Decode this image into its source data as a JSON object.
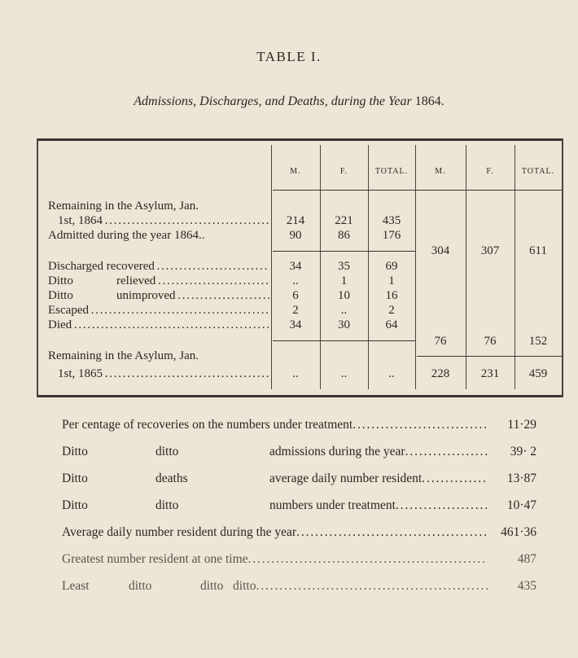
{
  "title": "TABLE I.",
  "subtitle": {
    "text": "Admissions, Discharges, and Deaths, during the Year",
    "year": "1864."
  },
  "table": {
    "headers": [
      "M.",
      "F.",
      "TOTAL.",
      "M.",
      "F.",
      "TOTAL."
    ],
    "rows": [
      {
        "label1": "Remaining in the Asylum, Jan.",
        "label2": "1st, 1864",
        "m": "214",
        "f": "221",
        "total": "435"
      },
      {
        "label1": "Admitted during the year 1864..",
        "m": "90",
        "f": "86",
        "total": "176"
      },
      {
        "label1": "Discharged recovered",
        "m": "34",
        "f": "35",
        "total": "69"
      },
      {
        "label1": "Ditto",
        "label2": "relieved",
        "m": "..",
        "f": "1",
        "total": "1"
      },
      {
        "label1": "Ditto",
        "label2": "unimproved",
        "m": "6",
        "f": "10",
        "total": "16"
      },
      {
        "label1": "Escaped",
        "m": "2",
        "f": "..",
        "total": "2"
      },
      {
        "label1": "Died",
        "m": "34",
        "f": "30",
        "total": "64"
      },
      {
        "label1": "Remaining in the Asylum, Jan.",
        "label2": "1st, 1865",
        "m": "..",
        "f": "..",
        "total": ".."
      }
    ],
    "group_totals": [
      {
        "m": "304",
        "f": "307",
        "total": "611"
      },
      {
        "m": "76",
        "f": "76",
        "total": "152"
      },
      {
        "m": "228",
        "f": "231",
        "total": "459"
      }
    ]
  },
  "summary": [
    {
      "a": "Per centage of recoveries on the numbers under treatment",
      "b": "",
      "c": "",
      "value": "11·29"
    },
    {
      "a": "Ditto",
      "b": "ditto",
      "c": "admissions during the year",
      "value": "39· 2"
    },
    {
      "a": "Ditto",
      "b": "deaths",
      "c": "average daily number resident",
      "value": "13·87"
    },
    {
      "a": "Ditto",
      "b": "ditto",
      "c": "numbers under treatment",
      "value": "10·47"
    },
    {
      "a": "Average daily number resident during the year",
      "b": "",
      "c": "",
      "value": "461·36"
    },
    {
      "a": "Greatest number resident at one time",
      "b": "",
      "c": "",
      "value": "487"
    },
    {
      "a": "Least",
      "b": "ditto",
      "c": "ditto   ditto",
      "value": "435"
    }
  ]
}
